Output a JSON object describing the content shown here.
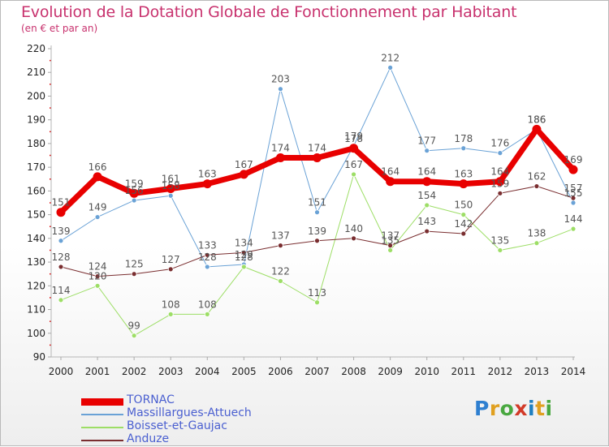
{
  "header": {
    "title": "Evolution de la Dotation Globale de Fonctionnement par Habitant",
    "subtitle": "(en € et par an)"
  },
  "logo": {
    "text": "Proxiti",
    "colors": [
      "#2e7fd0",
      "#e0a020",
      "#49a840",
      "#d23a28",
      "#1f7fc0",
      "#e0a020",
      "#49a840"
    ]
  },
  "chart_data": {
    "type": "line",
    "x": [
      "2000",
      "2001",
      "2002",
      "2003",
      "2004",
      "2005",
      "2006",
      "2007",
      "2008",
      "2009",
      "2010",
      "2011",
      "2012",
      "2013",
      "2014"
    ],
    "ylim": [
      90,
      220
    ],
    "yticks": [
      "90",
      "100",
      "110",
      "120",
      "130",
      "140",
      "150",
      "160",
      "170",
      "180",
      "190",
      "200",
      "210",
      "220"
    ],
    "grid": false,
    "legend_position": "bottom-left",
    "series": [
      {
        "name": "TORNAC",
        "color": "#e80000",
        "width": 7,
        "values": [
          151,
          166,
          159,
          161,
          163,
          167,
          174,
          174,
          178,
          164,
          164,
          163,
          164,
          186,
          169
        ],
        "labels": [
          "151",
          "166",
          "159",
          "161",
          "163",
          "167",
          "174",
          "174",
          "178",
          "164",
          "164",
          "163",
          "164",
          "186",
          "169"
        ]
      },
      {
        "name": "Massillargues-Attuech",
        "color": "#6aa2d6",
        "width": 1,
        "values": [
          139,
          149,
          156,
          158,
          128,
          129,
          203,
          151,
          179,
          212,
          177,
          178,
          176,
          186,
          155
        ],
        "labels": [
          "139",
          "149",
          "156",
          "158",
          "128",
          "129",
          "203",
          "151",
          "179",
          "212",
          "177",
          "178",
          "176",
          "186",
          "155"
        ]
      },
      {
        "name": "Boisset-et-Gaujac",
        "color": "#9dde66",
        "width": 1,
        "values": [
          114,
          120,
          99,
          108,
          108,
          128,
          122,
          113,
          167,
          135,
          154,
          150,
          135,
          138,
          144
        ],
        "labels": [
          "114",
          "120",
          "99",
          "108",
          "108",
          "128",
          "122",
          "113",
          "167",
          "135",
          "154",
          "150",
          "135",
          "138",
          "144"
        ]
      },
      {
        "name": "Anduze",
        "color": "#7a2e30",
        "width": 1,
        "values": [
          128,
          124,
          125,
          127,
          133,
          134,
          137,
          139,
          140,
          137,
          143,
          142,
          159,
          162,
          157
        ],
        "labels": [
          "128",
          "124",
          "125",
          "127",
          "133",
          "134",
          "137",
          "139",
          "140",
          "137",
          "143",
          "142",
          "159",
          "162",
          "157"
        ]
      }
    ]
  }
}
